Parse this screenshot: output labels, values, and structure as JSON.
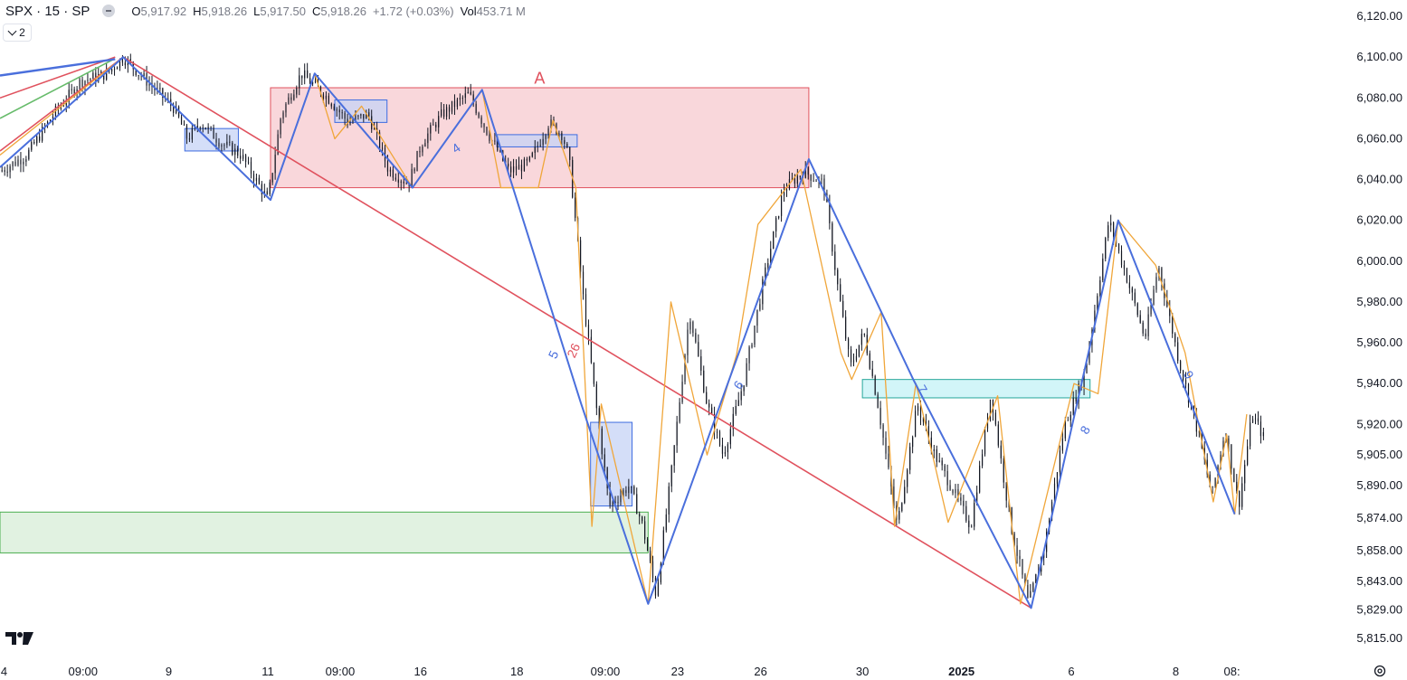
{
  "header": {
    "symbol": "SPX · 15 · SP",
    "open_label": "O",
    "open": "5,917.92",
    "high_label": "H",
    "high": "5,918.26",
    "low_label": "L",
    "low": "5,917.50",
    "close_label": "C",
    "close": "5,918.26",
    "change": "+1.72 (+0.03%)",
    "vol_label": "Vol",
    "vol": "453.71 M"
  },
  "indicator_toggle": {
    "count": "2"
  },
  "colors": {
    "up_zone_fill": "#f7cdd2",
    "up_zone_stroke": "#e0525e",
    "green_zone_fill": "#d9efd9",
    "green_zone_stroke": "#4caf50",
    "blue_box_fill": "#c5d3f6",
    "blue_box_stroke": "#3d6ce0",
    "cyan_box_fill": "#c7f3f6",
    "cyan_box_stroke": "#26a69a",
    "wave_blue": "#4a6fdc",
    "wave_orange": "#f0a63a",
    "trend_red": "#e0525e",
    "trend_green": "#66bb6a",
    "candles": "#131722"
  },
  "chart_data": {
    "type": "line",
    "title": "",
    "xlabel": "",
    "ylabel": "",
    "ylim": [
      5808,
      6128
    ],
    "y_ticks": [
      "6,120.00",
      "6,100.00",
      "6,080.00",
      "6,060.00",
      "6,040.00",
      "6,020.00",
      "6,000.00",
      "5,980.00",
      "5,960.00",
      "5,940.00",
      "5,920.00",
      "5,905.00",
      "5,890.00",
      "5,874.00",
      "5,858.00",
      "5,843.00",
      "5,829.00",
      "5,815.00"
    ],
    "x_ticks": [
      {
        "label": "4",
        "bold": false
      },
      {
        "label": "09:00",
        "bold": false
      },
      {
        "label": "9",
        "bold": false
      },
      {
        "label": "11",
        "bold": false
      },
      {
        "label": "09:00",
        "bold": false
      },
      {
        "label": "16",
        "bold": false
      },
      {
        "label": "18",
        "bold": false
      },
      {
        "label": "09:00",
        "bold": false
      },
      {
        "label": "23",
        "bold": false
      },
      {
        "label": "26",
        "bold": false
      },
      {
        "label": "30",
        "bold": false
      },
      {
        "label": "2025",
        "bold": true
      },
      {
        "label": "6",
        "bold": false
      },
      {
        "label": "8",
        "bold": false
      },
      {
        "label": "08:",
        "bold": false
      }
    ],
    "x_tick_index": [
      0.3,
      6.2,
      12.6,
      20.0,
      25.4,
      31.4,
      38.6,
      45.2,
      50.6,
      56.8,
      64.4,
      71.8,
      80.0,
      87.8,
      92.0
    ],
    "x_index_range": [
      0,
      100
    ],
    "price_path": [
      [
        0,
        6044
      ],
      [
        2,
        6052
      ],
      [
        4,
        6072
      ],
      [
        6,
        6088
      ],
      [
        8,
        6092
      ],
      [
        9.2,
        6100
      ],
      [
        11,
        6088
      ],
      [
        13,
        6075
      ],
      [
        14,
        6060
      ],
      [
        15,
        6068
      ],
      [
        16.5,
        6058
      ],
      [
        18,
        6052
      ],
      [
        20,
        6030
      ],
      [
        21,
        6072
      ],
      [
        22.5,
        6092
      ],
      [
        24.5,
        6080
      ],
      [
        26,
        6068
      ],
      [
        27.5,
        6072
      ],
      [
        29,
        6045
      ],
      [
        30.5,
        6038
      ],
      [
        31.5,
        6058
      ],
      [
        33,
        6072
      ],
      [
        35,
        6082
      ],
      [
        36.5,
        6062
      ],
      [
        38,
        6044
      ],
      [
        39.5,
        6048
      ],
      [
        41,
        6068
      ],
      [
        42,
        6062
      ],
      [
        42.5,
        6050
      ],
      [
        43.5,
        5985
      ],
      [
        44.5,
        5930
      ],
      [
        45.5,
        5880
      ],
      [
        47,
        5890
      ],
      [
        48,
        5870
      ],
      [
        49,
        5836
      ],
      [
        50.2,
        5900
      ],
      [
        51.5,
        5975
      ],
      [
        52.8,
        5930
      ],
      [
        54,
        5905
      ],
      [
        55.5,
        5940
      ],
      [
        57,
        5990
      ],
      [
        58.5,
        6035
      ],
      [
        60,
        6044
      ],
      [
        61.5,
        6038
      ],
      [
        62.5,
        5990
      ],
      [
        63.5,
        5948
      ],
      [
        64.5,
        5965
      ],
      [
        65.5,
        5932
      ],
      [
        67,
        5870
      ],
      [
        68.5,
        5930
      ],
      [
        69.8,
        5905
      ],
      [
        71,
        5890
      ],
      [
        72.5,
        5870
      ],
      [
        74,
        5935
      ],
      [
        75.5,
        5870
      ],
      [
        76.8,
        5832
      ],
      [
        78,
        5860
      ],
      [
        79.5,
        5920
      ],
      [
        81,
        5945
      ],
      [
        82.8,
        6020
      ],
      [
        84,
        5995
      ],
      [
        85.5,
        5962
      ],
      [
        86.5,
        5998
      ],
      [
        88,
        5952
      ],
      [
        89.5,
        5915
      ],
      [
        90.5,
        5885
      ],
      [
        91.5,
        5918
      ],
      [
        92.5,
        5880
      ],
      [
        93.5,
        5925
      ],
      [
        94.5,
        5912
      ]
    ],
    "wave_blue": [
      [
        0,
        6046
      ],
      [
        9.2,
        6100
      ],
      [
        20.2,
        6030
      ],
      [
        23.5,
        6092
      ],
      [
        30.8,
        6036
      ],
      [
        36,
        6084
      ],
      [
        43.4,
        5930
      ],
      [
        48.4,
        5832
      ],
      [
        60.4,
        6050
      ],
      [
        68.2,
        5942
      ],
      [
        77,
        5830
      ],
      [
        83.5,
        6020
      ],
      [
        92.2,
        5876
      ]
    ],
    "wave_orange": [
      [
        0,
        6052
      ],
      [
        9.2,
        6100
      ],
      [
        20.2,
        6030
      ],
      [
        23.5,
        6092
      ],
      [
        25,
        6060
      ],
      [
        27,
        6076
      ],
      [
        30.8,
        6036
      ],
      [
        36,
        6084
      ],
      [
        37.4,
        6036
      ],
      [
        40.2,
        6036
      ],
      [
        41.3,
        6069
      ],
      [
        43,
        6036
      ],
      [
        44.2,
        5870
      ],
      [
        44.9,
        5930
      ],
      [
        48.4,
        5832
      ],
      [
        50.1,
        5980
      ],
      [
        52.8,
        5905
      ],
      [
        55,
        5954
      ],
      [
        56.6,
        6018
      ],
      [
        59.8,
        6045
      ],
      [
        62.8,
        5955
      ],
      [
        63.6,
        5942
      ],
      [
        65.8,
        5975
      ],
      [
        66.8,
        5870
      ],
      [
        68.4,
        5940
      ],
      [
        70.8,
        5872
      ],
      [
        74.5,
        5934
      ],
      [
        76.2,
        5832
      ],
      [
        80.2,
        5940
      ],
      [
        82,
        5935
      ],
      [
        83.5,
        6020
      ],
      [
        86.3,
        5998
      ],
      [
        88.5,
        5955
      ],
      [
        90.6,
        5882
      ],
      [
        91.6,
        5915
      ],
      [
        92.2,
        5876
      ],
      [
        93.1,
        5925
      ]
    ],
    "trend_red": [
      [
        0,
        6054
      ],
      [
        9.2,
        6100
      ],
      [
        77,
        5830
      ]
    ],
    "trend_green_fan": [
      [
        [
          0,
          6070
        ],
        [
          8.5,
          6099
        ]
      ],
      [
        [
          0,
          6080
        ],
        [
          8.6,
          6100
        ]
      ],
      [
        [
          0,
          6091
        ],
        [
          8.6,
          6099
        ]
      ]
    ],
    "zones": [
      {
        "name": "A",
        "kind": "red",
        "x0": 20.2,
        "x1": 60.4,
        "y0": 6036,
        "y1": 6085
      },
      {
        "kind": "green",
        "x0": 0,
        "x1": 48.4,
        "y0": 5857,
        "y1": 5877
      },
      {
        "kind": "cyan",
        "x0": 64.4,
        "x1": 81.4,
        "y0": 5933,
        "y1": 5942
      },
      {
        "kind": "blue",
        "x0": 13.8,
        "x1": 17.8,
        "y0": 6054,
        "y1": 6065
      },
      {
        "kind": "blue",
        "x0": 25.0,
        "x1": 28.9,
        "y0": 6068,
        "y1": 6079
      },
      {
        "kind": "blue",
        "x0": 37.1,
        "x1": 43.1,
        "y0": 6056,
        "y1": 6062
      },
      {
        "kind": "blue",
        "x0": 44.1,
        "x1": 47.2,
        "y0": 5880,
        "y1": 5921
      }
    ],
    "labels": [
      {
        "text": "A",
        "x": 40.3,
        "y": 6089,
        "color": "trend_red",
        "size": 18,
        "rot": 0
      },
      {
        "text": "4",
        "x": 34.1,
        "y": 6055,
        "color": "wave_blue",
        "size": 14,
        "rot": -35
      },
      {
        "text": "5",
        "x": 41.4,
        "y": 5954,
        "color": "wave_blue",
        "size": 14,
        "rot": -65
      },
      {
        "text": "26",
        "x": 42.9,
        "y": 5956,
        "color": "trend_red",
        "size": 14,
        "rot": -65
      },
      {
        "text": "6",
        "x": 55.2,
        "y": 5939,
        "color": "wave_blue",
        "size": 14,
        "rot": -55
      },
      {
        "text": "7",
        "x": 68.8,
        "y": 5937,
        "color": "wave_blue",
        "size": 14,
        "rot": 60
      },
      {
        "text": "8",
        "x": 81.1,
        "y": 5917,
        "color": "wave_blue",
        "size": 14,
        "rot": -60
      },
      {
        "text": "9",
        "x": 88.7,
        "y": 5944,
        "color": "wave_blue",
        "size": 14,
        "rot": 60
      }
    ]
  }
}
